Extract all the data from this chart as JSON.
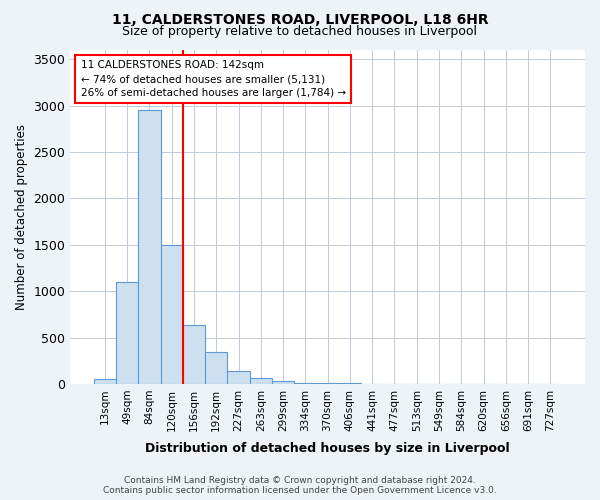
{
  "title": "11, CALDERSTONES ROAD, LIVERPOOL, L18 6HR",
  "subtitle": "Size of property relative to detached houses in Liverpool",
  "xlabel": "Distribution of detached houses by size in Liverpool",
  "ylabel": "Number of detached properties",
  "footnote": "Contains HM Land Registry data © Crown copyright and database right 2024.\nContains public sector information licensed under the Open Government Licence v3.0.",
  "bin_labels": [
    "13sqm",
    "49sqm",
    "84sqm",
    "120sqm",
    "156sqm",
    "192sqm",
    "227sqm",
    "263sqm",
    "299sqm",
    "334sqm",
    "370sqm",
    "406sqm",
    "441sqm",
    "477sqm",
    "513sqm",
    "549sqm",
    "584sqm",
    "620sqm",
    "656sqm",
    "691sqm",
    "727sqm"
  ],
  "bar_heights": [
    50,
    1100,
    2950,
    1500,
    640,
    340,
    140,
    60,
    30,
    15,
    8,
    5,
    3,
    2,
    1,
    1,
    0,
    0,
    0,
    0,
    0
  ],
  "bar_color": "#cce0f0",
  "bar_edge_color": "#5b9bd5",
  "vline_x": 3.5,
  "vline_color": "red",
  "annotation_text": "11 CALDERSTONES ROAD: 142sqm\n← 74% of detached houses are smaller (5,131)\n26% of semi-detached houses are larger (1,784) →",
  "annotation_box_color": "white",
  "annotation_box_edge_color": "red",
  "ylim": [
    0,
    3600
  ],
  "yticks": [
    0,
    500,
    1000,
    1500,
    2000,
    2500,
    3000,
    3500
  ],
  "bg_color": "#eef3f8",
  "plot_bg_color": "white",
  "grid_color": "#c0ccda"
}
